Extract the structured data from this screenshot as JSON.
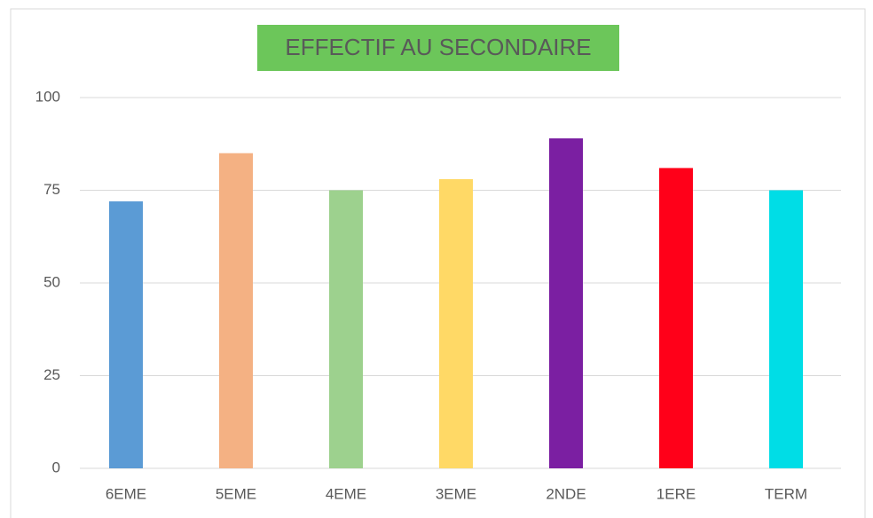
{
  "chart_data": {
    "type": "bar",
    "title": "EFFECTIF AU SECONDAIRE",
    "categories": [
      "6EME",
      "5EME",
      "4EME",
      "3EME",
      "2NDE",
      "1ERE",
      "TERM"
    ],
    "values": [
      72,
      85,
      75,
      78,
      89,
      81,
      75
    ],
    "colors": [
      "#5b9bd5",
      "#f4b183",
      "#9dd18e",
      "#ffd966",
      "#7b1fa2",
      "#ff0019",
      "#00dde6"
    ],
    "ylim": [
      0,
      100
    ],
    "yticks": [
      0,
      25,
      50,
      75,
      100
    ],
    "grid": true
  }
}
